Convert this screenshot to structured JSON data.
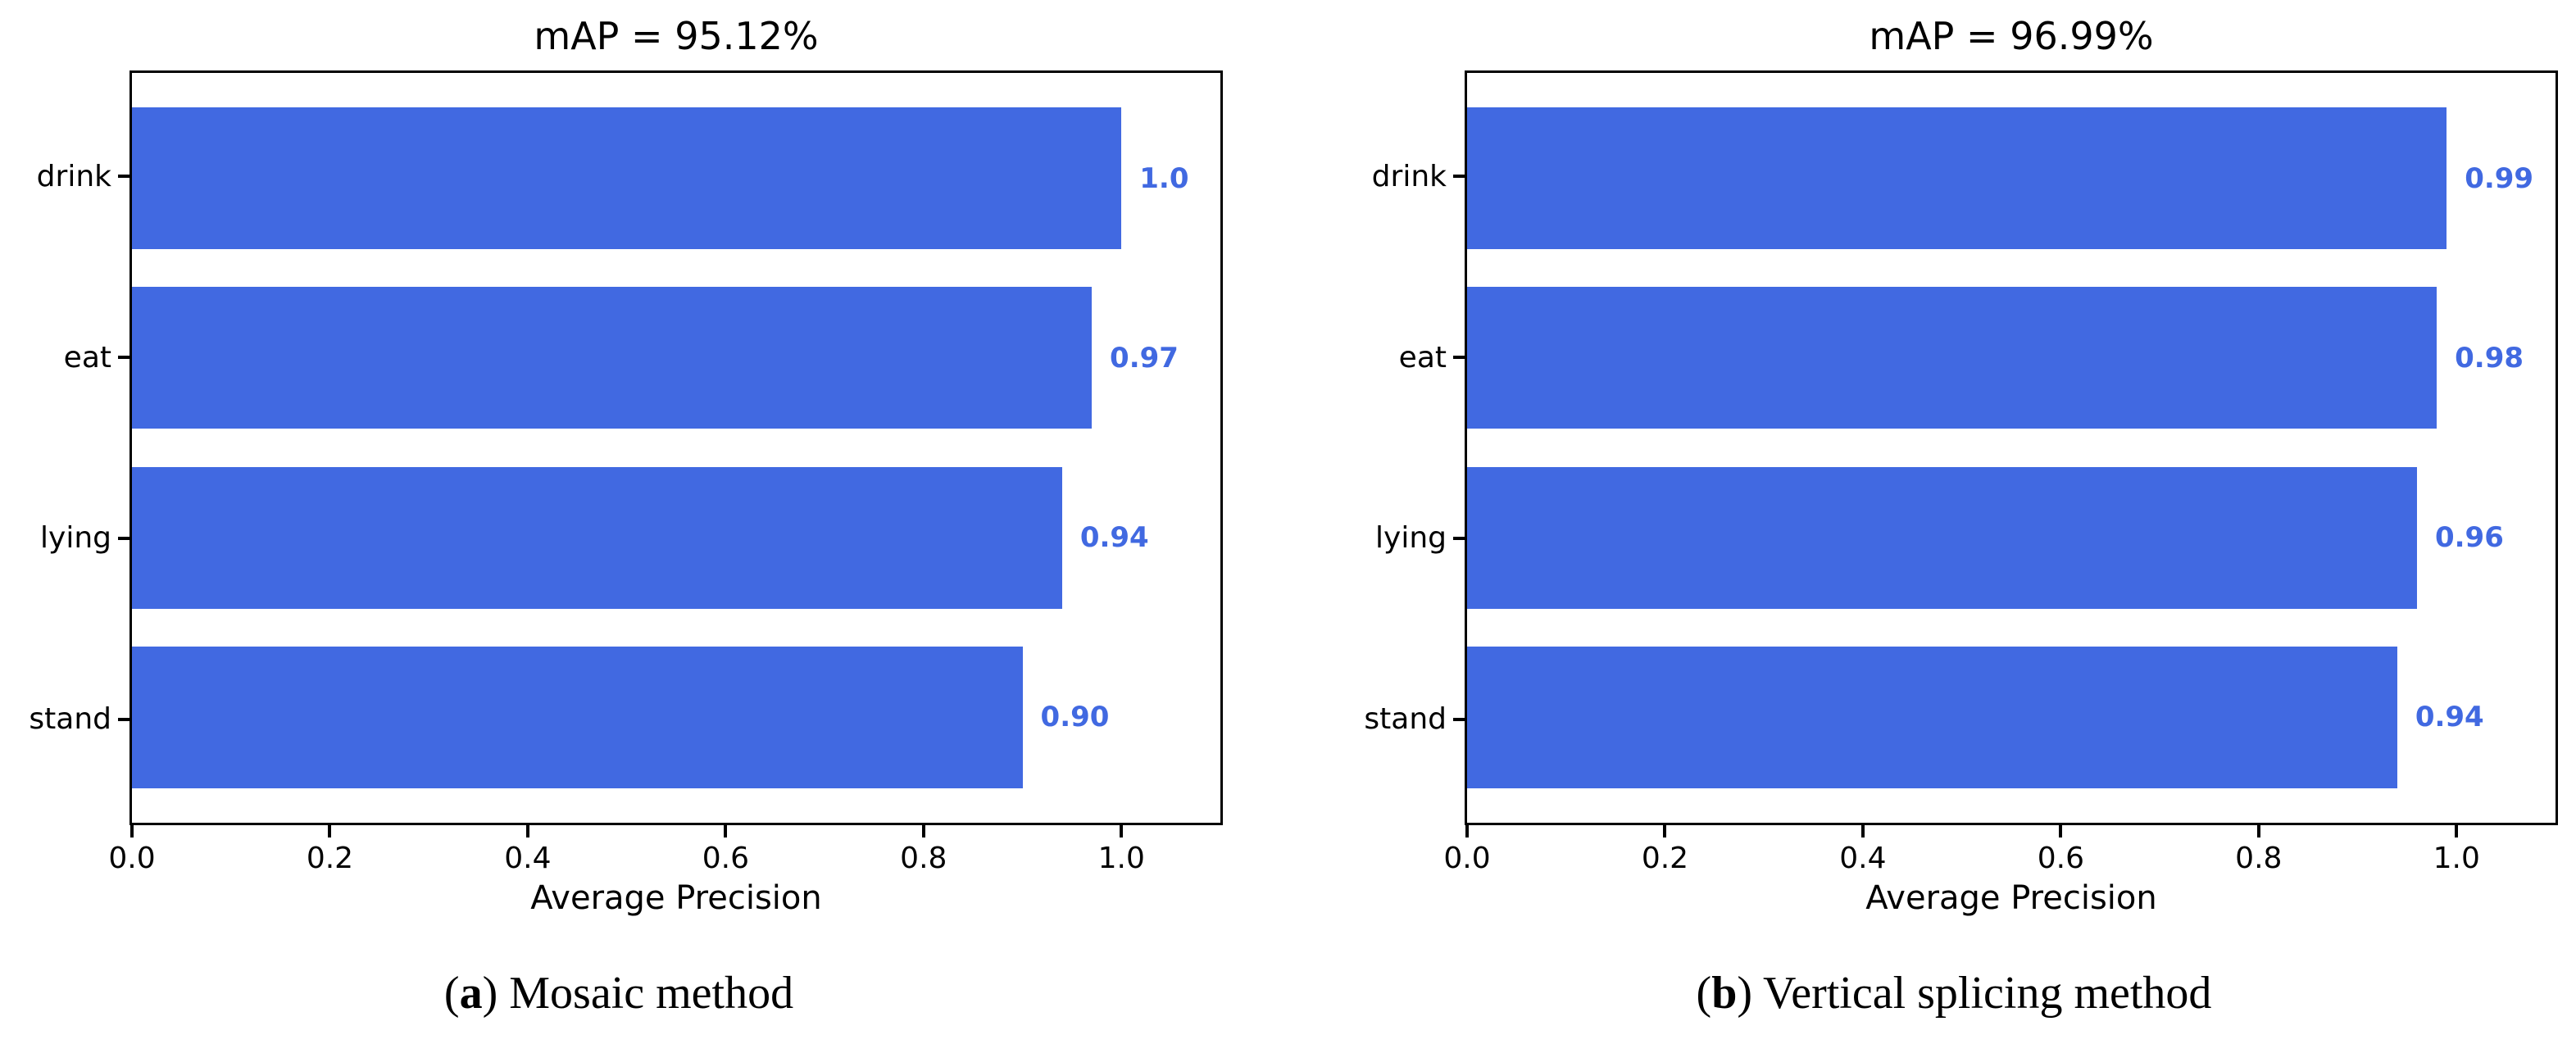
{
  "page": {
    "background": "#ffffff"
  },
  "chart_data": [
    {
      "type": "bar",
      "orientation": "horizontal",
      "title": "mAP = 95.12%",
      "categories": [
        "drink",
        "eat",
        "lying",
        "stand"
      ],
      "values": [
        1.0,
        0.97,
        0.94,
        0.9
      ],
      "value_labels": [
        "1.0",
        "0.97",
        "0.94",
        "0.90"
      ],
      "xlabel": "Average Precision",
      "xlim": [
        0,
        1.1
      ],
      "xticks": [
        0.0,
        0.2,
        0.4,
        0.6,
        0.8,
        1.0
      ],
      "xtick_labels": [
        "0.0",
        "0.2",
        "0.4",
        "0.6",
        "0.8",
        "1.0"
      ],
      "bar_color": "#4169E1",
      "value_label_color": "#4169E1",
      "axis_color": "#000000",
      "grid": false,
      "legend": false,
      "caption": {
        "open": "(",
        "letter": "a",
        "close": ")",
        "text": " Mosaic method"
      }
    },
    {
      "type": "bar",
      "orientation": "horizontal",
      "title": "mAP = 96.99%",
      "categories": [
        "drink",
        "eat",
        "lying",
        "stand"
      ],
      "values": [
        0.99,
        0.98,
        0.96,
        0.94
      ],
      "value_labels": [
        "0.99",
        "0.98",
        "0.96",
        "0.94"
      ],
      "xlabel": "Average Precision",
      "xlim": [
        0,
        1.1
      ],
      "xticks": [
        0.0,
        0.2,
        0.4,
        0.6,
        0.8,
        1.0
      ],
      "xtick_labels": [
        "0.0",
        "0.2",
        "0.4",
        "0.6",
        "0.8",
        "1.0"
      ],
      "bar_color": "#4169E1",
      "value_label_color": "#4169E1",
      "axis_color": "#000000",
      "grid": false,
      "legend": false,
      "caption": {
        "open": "(",
        "letter": "b",
        "close": ")",
        "text": " Vertical splicing method"
      }
    }
  ]
}
